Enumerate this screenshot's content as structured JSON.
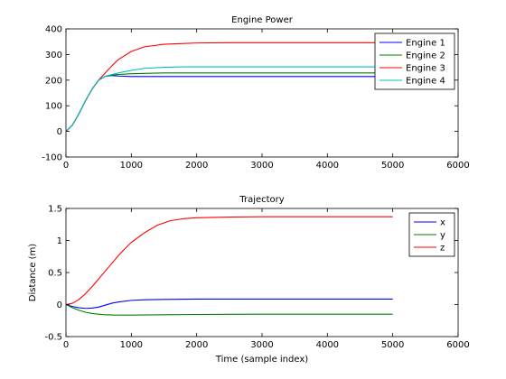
{
  "chart_data": [
    {
      "type": "line",
      "title": "Engine Power",
      "xlabel": "",
      "ylabel": "",
      "xlim": [
        0,
        6000
      ],
      "ylim": [
        -100,
        400
      ],
      "xticks": [
        0,
        1000,
        2000,
        3000,
        4000,
        5000,
        6000
      ],
      "yticks": [
        -100,
        0,
        100,
        200,
        300,
        400
      ],
      "grid": false,
      "legend": "top-right",
      "series": [
        {
          "name": "Engine 1",
          "color": "#0000ff",
          "x": [
            0,
            100,
            200,
            300,
            400,
            500,
            600,
            700,
            800,
            1000,
            1500,
            2000,
            3000,
            4000,
            5000
          ],
          "y": [
            0,
            25,
            70,
            120,
            165,
            200,
            215,
            218,
            216,
            214,
            214,
            214,
            214,
            214,
            214
          ]
        },
        {
          "name": "Engine 2",
          "color": "#008000",
          "x": [
            0,
            100,
            200,
            300,
            400,
            500,
            600,
            700,
            800,
            1000,
            1500,
            2000,
            3000,
            4000,
            5000
          ],
          "y": [
            0,
            25,
            70,
            120,
            165,
            200,
            215,
            220,
            222,
            225,
            228,
            228,
            228,
            228,
            228
          ]
        },
        {
          "name": "Engine 3",
          "color": "#ff0000",
          "x": [
            0,
            100,
            200,
            300,
            400,
            500,
            600,
            700,
            800,
            1000,
            1200,
            1500,
            1800,
            2000,
            2500,
            3000,
            4000,
            5000
          ],
          "y": [
            0,
            25,
            70,
            120,
            165,
            200,
            228,
            255,
            280,
            312,
            330,
            340,
            343,
            345,
            346,
            346,
            346,
            346
          ]
        },
        {
          "name": "Engine 4",
          "color": "#00bfbf",
          "x": [
            0,
            100,
            200,
            300,
            400,
            500,
            600,
            700,
            800,
            1000,
            1200,
            1500,
            1800,
            2000,
            3000,
            4000,
            5000
          ],
          "y": [
            0,
            25,
            70,
            120,
            165,
            200,
            215,
            222,
            228,
            238,
            246,
            250,
            252,
            252,
            252,
            252,
            252
          ]
        }
      ]
    },
    {
      "type": "line",
      "title": "Trajectory",
      "xlabel": "Time (sample index)",
      "ylabel": "Distance (m)",
      "xlim": [
        0,
        6000
      ],
      "ylim": [
        -0.5,
        1.5
      ],
      "xticks": [
        0,
        1000,
        2000,
        3000,
        4000,
        5000,
        6000
      ],
      "yticks": [
        -0.5,
        0,
        0.5,
        1,
        1.5
      ],
      "grid": false,
      "legend": "top-right",
      "series": [
        {
          "name": "x",
          "color": "#0000ff",
          "x": [
            0,
            100,
            200,
            300,
            400,
            500,
            600,
            700,
            800,
            1000,
            1200,
            1500,
            2000,
            3000,
            4000,
            5000
          ],
          "y": [
            0,
            -0.03,
            -0.05,
            -0.06,
            -0.055,
            -0.04,
            -0.01,
            0.02,
            0.04,
            0.065,
            0.075,
            0.08,
            0.085,
            0.085,
            0.085,
            0.085
          ]
        },
        {
          "name": "y",
          "color": "#008000",
          "x": [
            0,
            100,
            200,
            300,
            400,
            500,
            600,
            800,
            1000,
            1500,
            2000,
            3000,
            4000,
            5000
          ],
          "y": [
            0,
            -0.05,
            -0.09,
            -0.12,
            -0.14,
            -0.15,
            -0.16,
            -0.165,
            -0.165,
            -0.16,
            -0.155,
            -0.15,
            -0.15,
            -0.15
          ]
        },
        {
          "name": "z",
          "color": "#ff0000",
          "x": [
            0,
            100,
            200,
            300,
            400,
            500,
            600,
            700,
            800,
            900,
            1000,
            1200,
            1400,
            1600,
            1800,
            2000,
            2500,
            3000,
            4000,
            5000
          ],
          "y": [
            0,
            0.02,
            0.08,
            0.17,
            0.28,
            0.4,
            0.52,
            0.64,
            0.76,
            0.87,
            0.97,
            1.12,
            1.24,
            1.31,
            1.34,
            1.355,
            1.365,
            1.37,
            1.37,
            1.37
          ]
        }
      ]
    }
  ]
}
